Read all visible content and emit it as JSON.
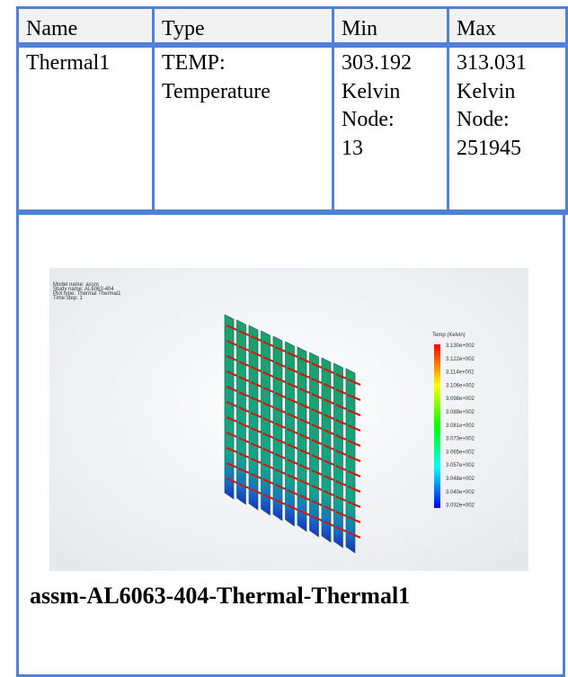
{
  "table": {
    "header": [
      "Name",
      "Type",
      "Min",
      "Max"
    ],
    "rows": [
      [
        [
          "Thermal1"
        ],
        [
          "TEMP:",
          "Temperature"
        ],
        [
          "303.192",
          "Kelvin",
          "Node:",
          "13"
        ],
        [
          "313.031",
          "Kelvin",
          "Node:",
          "251945"
        ]
      ]
    ]
  },
  "figure": {
    "info": [
      "Model name: assm",
      "Study name: AL6063-404",
      "Plot type: Thermal Thermal1",
      "Time step: 1"
    ],
    "legend_title": "Temp (Kelvin)",
    "legend_labels": [
      "3.130e+002",
      "3.122e+002",
      "3.114e+002",
      "3.106e+002",
      "3.098e+002",
      "3.089e+002",
      "3.081e+002",
      "3.073e+002",
      "3.065e+002",
      "3.057e+002",
      "3.048e+002",
      "3.040e+002",
      "3.032e+002"
    ],
    "caption": "assm-AL6063-404-Thermal-Thermal1"
  }
}
